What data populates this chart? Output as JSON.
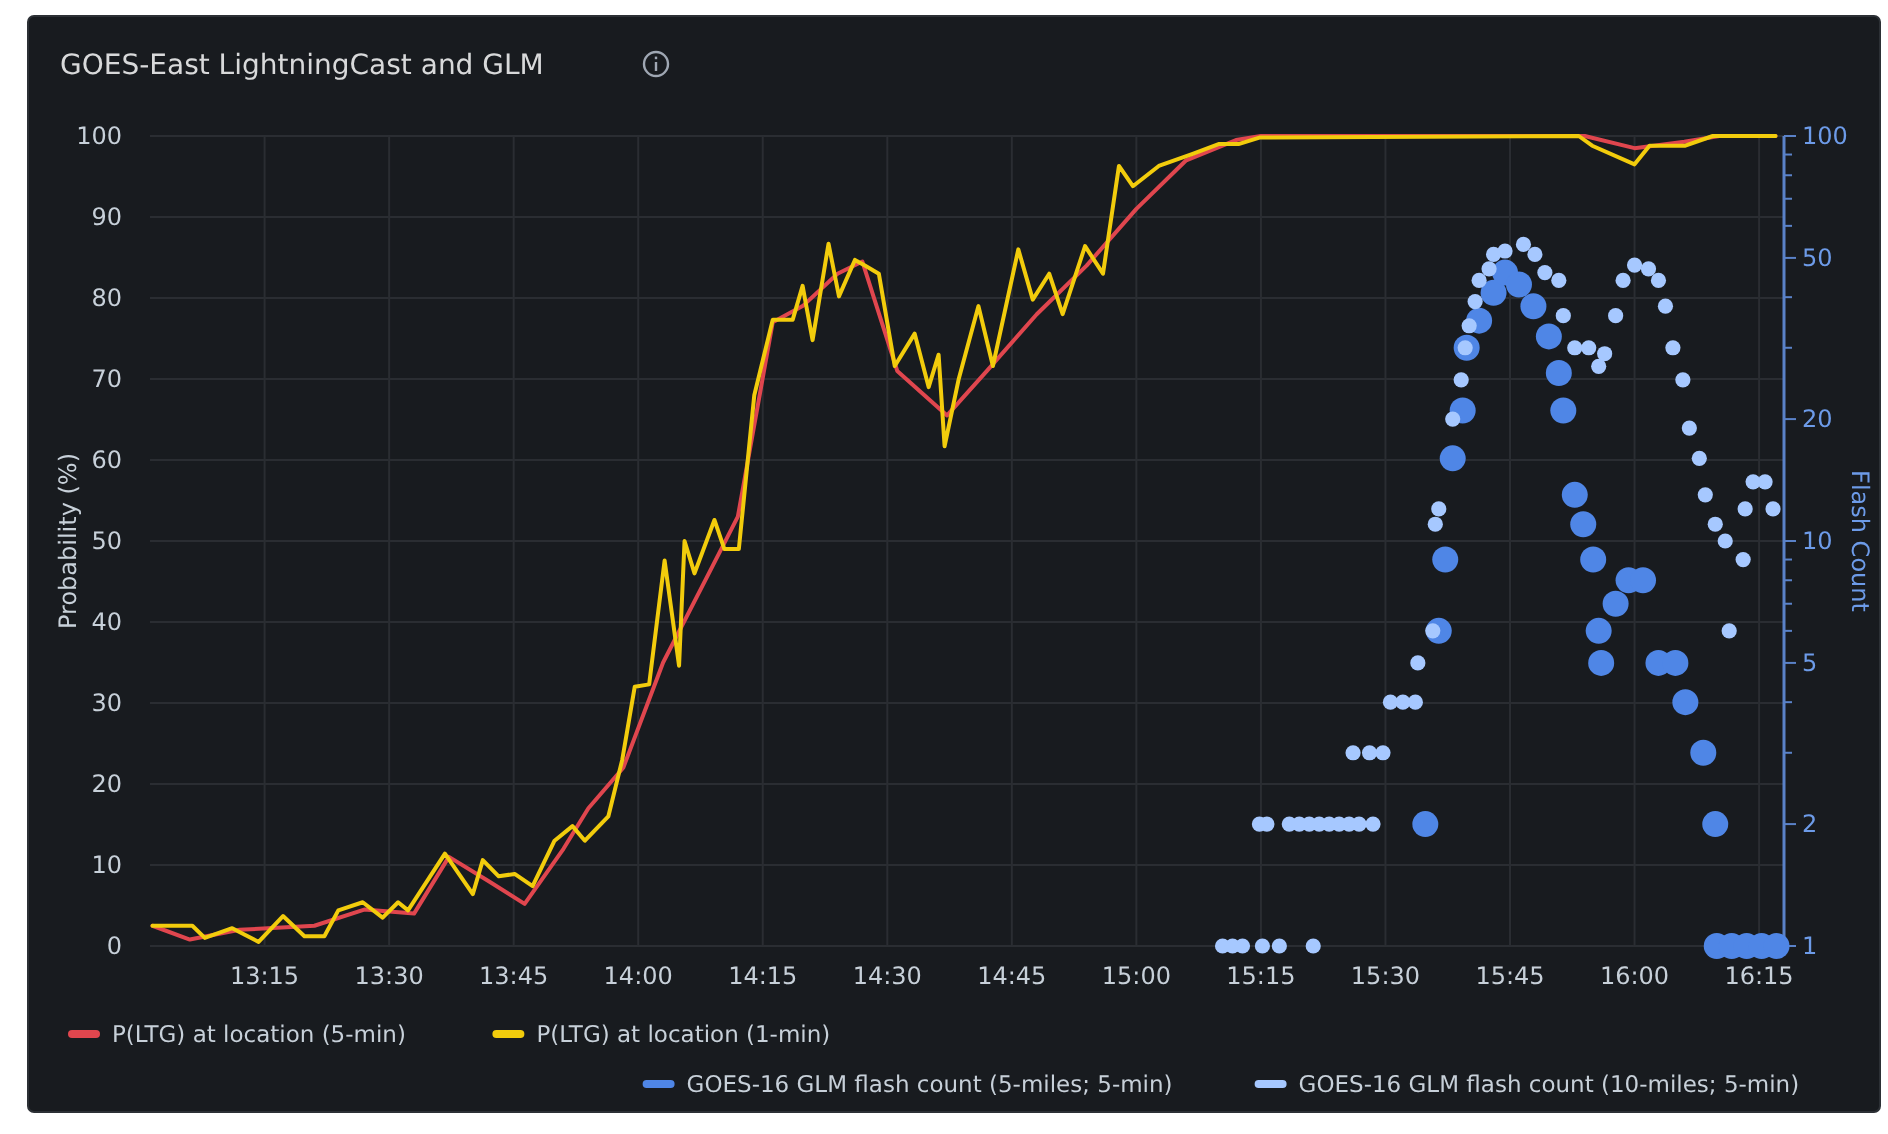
{
  "chart_data": {
    "type": "line",
    "title": "GOES-East LightningCast and GLM",
    "ylabel": "Probability (%)",
    "y2label": "Flash Count",
    "xlim": [
      13.02,
      16.3
    ],
    "xticks": [
      {
        "value": 13.25,
        "label": "13:15"
      },
      {
        "value": 13.5,
        "label": "13:30"
      },
      {
        "value": 13.75,
        "label": "13:45"
      },
      {
        "value": 14,
        "label": "14:00"
      },
      {
        "value": 14.25,
        "label": "14:15"
      },
      {
        "value": 14.5,
        "label": "14:30"
      },
      {
        "value": 14.75,
        "label": "14:45"
      },
      {
        "value": 15,
        "label": "15:00"
      },
      {
        "value": 15.25,
        "label": "15:15"
      },
      {
        "value": 15.5,
        "label": "15:30"
      },
      {
        "value": 15.75,
        "label": "15:45"
      },
      {
        "value": 16,
        "label": "16:00"
      },
      {
        "value": 16.25,
        "label": "16:15"
      }
    ],
    "ylim": [
      0,
      100
    ],
    "yticks": [
      0,
      10,
      20,
      30,
      40,
      50,
      60,
      70,
      80,
      90,
      100
    ],
    "y2lim": [
      1,
      100
    ],
    "y2ticks": [
      1,
      2,
      {
        "value": 3,
        "label": null
      },
      {
        "value": 4,
        "label": null
      },
      5,
      {
        "value": 6,
        "label": null
      },
      {
        "value": 7,
        "label": null
      },
      {
        "value": 8,
        "label": null
      },
      {
        "value": 9,
        "label": null
      },
      10,
      20,
      {
        "value": 30,
        "label": null
      },
      {
        "value": 40,
        "label": null
      },
      50,
      {
        "value": 60,
        "label": null
      },
      {
        "value": 70,
        "label": null
      },
      {
        "value": 80,
        "label": null
      },
      {
        "value": 90,
        "label": null
      },
      100
    ],
    "log": "y2",
    "grid": true,
    "legend": "bottom",
    "line_style": "solid",
    "series": [
      {
        "name": "P(LTG) at location (5-min)",
        "marker": "none",
        "color": "#e0464e",
        "x": [
          13.025,
          13.1,
          13.2,
          13.35,
          13.45,
          13.55,
          13.62,
          13.7,
          13.772,
          13.85,
          13.9,
          13.97,
          14.05,
          14.15,
          14.2,
          14.27,
          14.33,
          14.4,
          14.45,
          14.52,
          14.62,
          14.7,
          14.8,
          14.9,
          15.0,
          15.1,
          15.2,
          15.25,
          15.9,
          16.0,
          16.1,
          16.17,
          16.283
        ],
        "values": [
          2.5,
          0.8,
          2,
          2.5,
          4.5,
          4,
          11,
          8,
          5.2,
          12,
          17,
          22,
          35,
          47,
          53,
          77,
          79,
          83,
          84.5,
          71,
          65.5,
          71,
          78,
          84,
          91,
          97,
          99.5,
          100,
          100,
          98.5,
          99.3,
          100,
          100
        ]
      },
      {
        "name": "P(LTG) at location (1-min)",
        "marker": "none",
        "color": "#f2cc0c",
        "x": [
          13.025,
          13.105,
          13.13,
          13.185,
          13.238,
          13.287,
          13.33,
          13.37,
          13.398,
          13.447,
          13.487,
          13.518,
          13.538,
          13.612,
          13.668,
          13.688,
          13.72,
          13.752,
          13.788,
          13.832,
          13.868,
          13.893,
          13.94,
          13.968,
          13.993,
          14.022,
          14.053,
          14.082,
          14.093,
          14.113,
          14.153,
          14.173,
          14.202,
          14.233,
          14.27,
          14.31,
          14.33,
          14.35,
          14.382,
          14.403,
          14.435,
          14.455,
          14.483,
          14.515,
          14.555,
          14.583,
          14.603,
          14.615,
          14.643,
          14.683,
          14.712,
          14.763,
          14.792,
          14.825,
          14.852,
          14.897,
          14.933,
          14.965,
          14.993,
          15.045,
          15.113,
          15.165,
          15.205,
          15.247,
          15.888,
          15.915,
          16.0,
          16.03,
          16.102,
          16.157,
          16.283
        ],
        "values": [
          2.5,
          2.5,
          1,
          2.2,
          0.5,
          3.7,
          1.2,
          1.2,
          4.4,
          5.4,
          3.5,
          5.4,
          4.4,
          11.4,
          6.4,
          10.6,
          8.6,
          8.9,
          7.4,
          13,
          14.8,
          13,
          16,
          23,
          32,
          32.3,
          47.6,
          34.6,
          50,
          46,
          52.6,
          49,
          49,
          68,
          77.3,
          77.3,
          81.5,
          74.8,
          86.7,
          80.2,
          84.7,
          84,
          83,
          71.6,
          75.6,
          69,
          73,
          61.7,
          69.9,
          79,
          71.6,
          86,
          79.8,
          83,
          78,
          86.4,
          83,
          96.3,
          93.8,
          96.3,
          97.8,
          99,
          99,
          99.8,
          100,
          98.8,
          96.5,
          98.8,
          98.8,
          100,
          100
        ]
      },
      {
        "name": "GOES-16 GLM flash count (5-miles; 5-min)",
        "type": "scatter",
        "marker": "circle",
        "axis": "y2",
        "color": "#4f86e6",
        "x": [
          15.58,
          15.607,
          15.62,
          15.635,
          15.655,
          15.663,
          15.688,
          15.717,
          15.74,
          15.768,
          15.797,
          15.828,
          15.848,
          15.857,
          15.88,
          15.897,
          15.917,
          15.928,
          15.933,
          15.962,
          15.988,
          16.017,
          16.048,
          16.082,
          16.102,
          16.138,
          16.162,
          16.165,
          16.195,
          16.225,
          16.255,
          16.285
        ],
        "values": [
          2,
          6,
          9,
          16,
          21,
          30,
          35,
          41,
          46,
          43,
          38,
          32,
          26,
          21,
          13,
          11,
          9,
          6,
          5,
          7,
          8,
          8,
          5,
          5,
          4,
          3,
          2,
          1,
          1,
          1,
          1,
          1
        ]
      },
      {
        "name": "GOES-16 GLM flash count (10-miles; 5-min)",
        "type": "scatter",
        "marker": "circle",
        "axis": "y2",
        "color": "#a6c8ff",
        "x": [
          15.173,
          15.193,
          15.213,
          15.253,
          15.287,
          15.355,
          15.247,
          15.262,
          15.307,
          15.327,
          15.347,
          15.367,
          15.387,
          15.407,
          15.427,
          15.447,
          15.475,
          15.435,
          15.468,
          15.495,
          15.51,
          15.535,
          15.56,
          15.565,
          15.595,
          15.6,
          15.607,
          15.635,
          15.652,
          15.66,
          15.668,
          15.68,
          15.688,
          15.708,
          15.717,
          15.74,
          15.777,
          15.8,
          15.82,
          15.848,
          15.857,
          15.88,
          15.908,
          15.928,
          15.94,
          15.962,
          15.977,
          16.0,
          16.028,
          16.048,
          16.062,
          16.077,
          16.097,
          16.11,
          16.13,
          16.142,
          16.162,
          16.182,
          16.19,
          16.218,
          16.222,
          16.238,
          16.262,
          16.278
        ],
        "values": [
          1,
          1,
          1,
          1,
          1,
          1,
          2,
          2,
          2,
          2,
          2,
          2,
          2,
          2,
          2,
          2,
          2,
          3,
          3,
          3,
          4,
          4,
          4,
          5,
          6,
          11,
          12,
          20,
          25,
          30,
          34,
          39,
          44,
          47,
          51,
          52,
          54,
          51,
          46,
          44,
          36,
          30,
          30,
          27,
          29,
          36,
          44,
          48,
          47,
          44,
          38,
          30,
          25,
          19,
          16,
          13,
          11,
          10,
          6,
          9,
          12,
          14,
          14,
          12
        ]
      }
    ]
  }
}
